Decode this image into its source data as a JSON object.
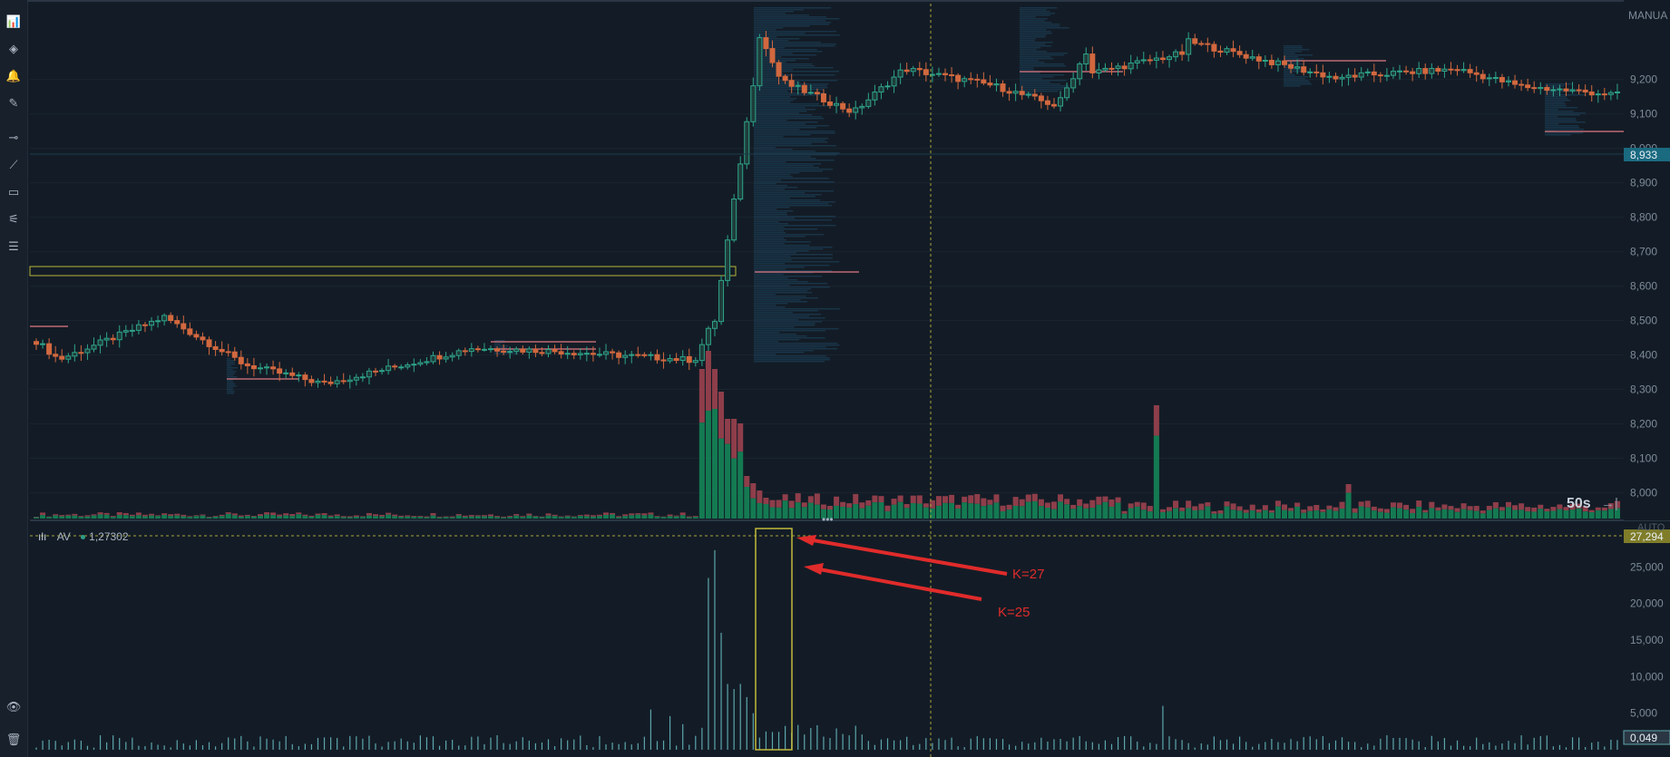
{
  "toolbar": {
    "items": [
      {
        "name": "indicators-icon",
        "glyph": "📊"
      },
      {
        "name": "layers-icon",
        "glyph": "◈"
      },
      {
        "name": "alert-bell-icon",
        "glyph": "🔔"
      },
      {
        "name": "pencil-icon",
        "glyph": "✎"
      },
      {
        "name": "horizontal-line-icon",
        "glyph": "⊸"
      },
      {
        "name": "trend-line-icon",
        "glyph": "⟋"
      },
      {
        "name": "rectangle-icon",
        "glyph": "▭"
      },
      {
        "name": "ruler-icon",
        "glyph": "⚟"
      },
      {
        "name": "template-icon",
        "glyph": "☰"
      },
      {
        "name": "eye-icon",
        "glyph": "👁"
      },
      {
        "name": "trash-icon",
        "glyph": "🗑"
      }
    ]
  },
  "colors": {
    "up": "#2ea489",
    "down": "#d2683f",
    "vol_up": "#147a52",
    "vol_down": "#8e3e4a",
    "grid": "#1a2430",
    "highlight": "#b9b53a",
    "annotation": "#e02b2b"
  },
  "price_axis": {
    "scale_mode": "MANUA",
    "ticks": [
      "9,200",
      "9,100",
      "9,000",
      "8,900",
      "8,800",
      "8,700",
      "8,600",
      "8,500",
      "8,400",
      "8,300",
      "8,200",
      "8,100",
      "8,000"
    ],
    "tick_values": [
      9200,
      9100,
      9000,
      8900,
      8800,
      8700,
      8600,
      8500,
      8400,
      8300,
      8200,
      8100,
      8000
    ],
    "current_price": "8,933",
    "min": 7930,
    "max": 9410
  },
  "timeframe": {
    "label": "50s",
    "arrow": "→|"
  },
  "indicator": {
    "name": "AV",
    "value": "1,27302",
    "auto_label": "AUTO",
    "ticks": [
      "25,000",
      "20,000",
      "15,000",
      "10,000",
      "5,000"
    ],
    "tick_values": [
      25000,
      20000,
      15000,
      10000,
      5000
    ],
    "crosshair_value": "27,294",
    "last_value": "0,049",
    "max": 30250
  },
  "annotations": [
    {
      "label": "K=27"
    },
    {
      "label": "K=25"
    }
  ],
  "chart_data": {
    "type": "candlestick",
    "price_series_ohlc": [],
    "note_free_fields": false
  }
}
